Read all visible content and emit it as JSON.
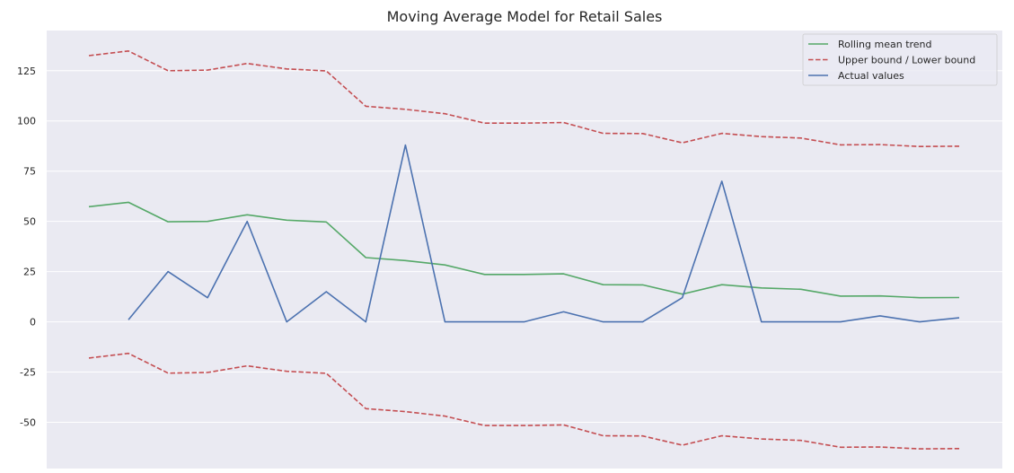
{
  "chart_data": {
    "type": "line",
    "title": "Moving Average Model for Retail Sales",
    "xlabel": "",
    "ylabel": "",
    "ylim": [
      -73,
      145
    ],
    "yticks": [
      -50,
      -25,
      0,
      25,
      50,
      75,
      100,
      125
    ],
    "grid": true,
    "legend_position": "top-right",
    "x": [
      0,
      1,
      2,
      3,
      4,
      5,
      6,
      7,
      8,
      9,
      10,
      11,
      12,
      13,
      14,
      15,
      16,
      17,
      18,
      19,
      20,
      21,
      22
    ],
    "series": [
      {
        "name": "Rolling mean trend",
        "color": "#55a868",
        "style": "solid",
        "values": [
          57.3,
          59.5,
          49.8,
          50.0,
          53.3,
          50.6,
          49.7,
          32.0,
          30.5,
          28.3,
          23.6,
          23.6,
          23.9,
          18.5,
          18.4,
          13.8,
          18.5,
          16.9,
          16.2,
          12.8,
          12.9,
          12.0,
          12.1
        ]
      },
      {
        "name": "Upper bound / Lower bound",
        "color": "#c44e52",
        "style": "dashed",
        "values": [
          132.5,
          134.8,
          125.0,
          125.3,
          128.6,
          125.9,
          124.9,
          107.3,
          105.8,
          103.6,
          98.9,
          98.9,
          99.2,
          93.8,
          93.7,
          89.1,
          93.8,
          92.2,
          91.5,
          88.1,
          88.2,
          87.3,
          87.4
        ]
      },
      {
        "name": "",
        "color": "#c44e52",
        "style": "dashed",
        "values": [
          -18.0,
          -15.7,
          -25.5,
          -25.2,
          -21.9,
          -24.6,
          -25.6,
          -43.2,
          -44.7,
          -46.9,
          -51.6,
          -51.6,
          -51.3,
          -56.7,
          -56.8,
          -61.4,
          -56.7,
          -58.3,
          -59.0,
          -62.4,
          -62.3,
          -63.2,
          -63.1
        ]
      },
      {
        "name": "Actual values",
        "color": "#4c72b0",
        "style": "solid",
        "values": [
          null,
          1,
          25,
          12,
          50,
          0,
          15,
          0,
          88,
          0,
          0,
          0,
          5,
          0,
          0,
          12,
          70,
          0,
          0,
          0,
          3,
          0,
          2
        ]
      }
    ],
    "legend": [
      {
        "label": "Rolling mean trend",
        "color": "#55a868",
        "style": "solid"
      },
      {
        "label": "Upper bound / Lower bound",
        "color": "#c44e52",
        "style": "dashed"
      },
      {
        "label": "Actual values",
        "color": "#4c72b0",
        "style": "solid"
      }
    ],
    "colors": {
      "background": "#eaeaf2",
      "grid": "#ffffff"
    }
  }
}
